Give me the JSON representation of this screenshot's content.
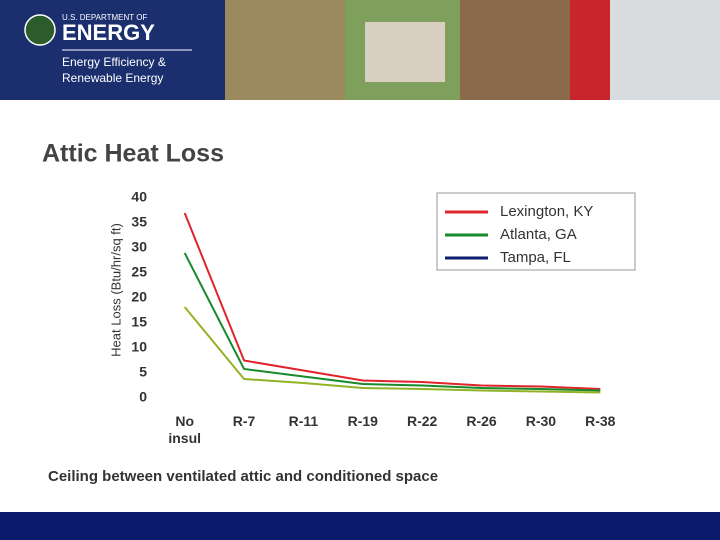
{
  "header": {
    "agency": "U.S. DEPARTMENT OF",
    "department": "ENERGY",
    "office_line1": "Energy Efficiency &",
    "office_line2": "Renewable Energy"
  },
  "chart_data": {
    "type": "line",
    "title": "Attic Heat Loss",
    "y_label": "Heat Loss (Btu/hr/sq ft)",
    "x_label": "Ceiling between ventilated attic and conditioned space",
    "categories": [
      "No insul",
      "R-7",
      "R-11",
      "R-19",
      "R-22",
      "R-26",
      "R-30",
      "R-38"
    ],
    "series": [
      {
        "name": "Lexington, KY",
        "color": "#e0242b",
        "legend_color": "#e0242b",
        "values": [
          37,
          7.5,
          5.5,
          3.5,
          3.2,
          2.5,
          2.3,
          1.8
        ]
      },
      {
        "name": "Atlanta, GA",
        "color": "#178a2a",
        "legend_color": "#178a2a",
        "values": [
          29,
          5.8,
          4.3,
          2.8,
          2.5,
          2,
          1.8,
          1.5
        ]
      },
      {
        "name": "Tampa, FL",
        "color": "#92b326",
        "legend_color": "#0d1e6e",
        "values": [
          18.2,
          3.8,
          3,
          2,
          1.8,
          1.5,
          1.3,
          1.1
        ]
      }
    ],
    "ylim": [
      0,
      40
    ],
    "yticks": [
      0,
      5,
      10,
      15,
      20,
      25,
      30,
      35,
      40
    ],
    "grid": false,
    "legend": "upper right"
  }
}
